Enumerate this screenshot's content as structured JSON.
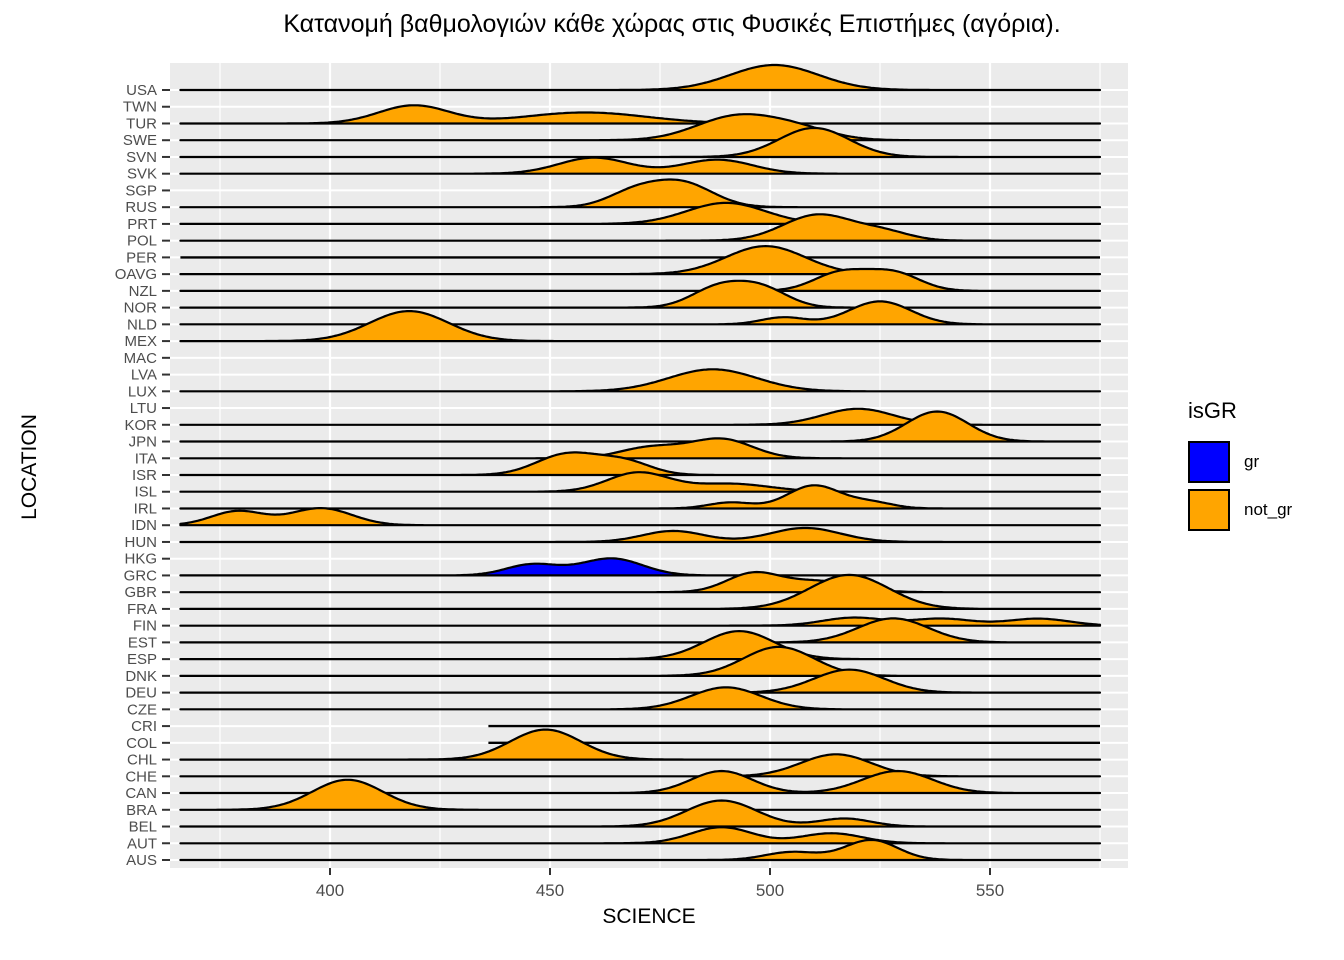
{
  "chart_data": {
    "type": "ridgeline",
    "title": "Κατανομή βαθμολογιών κάθε χώρας στις Φυσικές Επιστήμες (αγόρια).",
    "xlabel": "SCIENCE",
    "ylabel": "LOCATION",
    "x_ticks": [
      400,
      450,
      500,
      550
    ],
    "x_minor_ticks": [
      375,
      425,
      475,
      525,
      575
    ],
    "xlim": [
      363,
      582
    ],
    "legend": {
      "title": "isGR",
      "entries": [
        {
          "label": "gr",
          "color": "#0000FF"
        },
        {
          "label": "not_gr",
          "color": "#FFA500"
        }
      ],
      "position": "right"
    },
    "colors": {
      "panel_bg": "#EBEBEB",
      "grid": "#FFFFFF",
      "axis_text": "#4D4D4D",
      "outline": "#000000",
      "gr": "#0000FF",
      "not_gr": "#FFA500"
    },
    "note": "Each row shows a density of science scores; modes are [peak_score, sd_in_score_units, peak_height_px]. status: normal = curve, flat = baseline only, absent = no data line.",
    "countries": [
      {
        "code": "USA",
        "group": "not_gr",
        "status": "normal",
        "range": [
          366,
          575
        ],
        "modes": [
          [
            501,
            10,
            25
          ]
        ]
      },
      {
        "code": "TWN",
        "group": "not_gr",
        "status": "absent",
        "range": [
          366,
          575
        ],
        "modes": []
      },
      {
        "code": "TUR",
        "group": "not_gr",
        "status": "normal",
        "range": [
          366,
          575
        ],
        "modes": [
          [
            419,
            8,
            18
          ],
          [
            458,
            14,
            11
          ]
        ]
      },
      {
        "code": "SWE",
        "group": "not_gr",
        "status": "normal",
        "range": [
          366,
          575
        ],
        "modes": [
          [
            492,
            9,
            23
          ],
          [
            506,
            8,
            11
          ]
        ]
      },
      {
        "code": "SVN",
        "group": "not_gr",
        "status": "normal",
        "range": [
          366,
          575
        ],
        "modes": [
          [
            510,
            8,
            29
          ]
        ]
      },
      {
        "code": "SVK",
        "group": "not_gr",
        "status": "normal",
        "range": [
          366,
          575
        ],
        "modes": [
          [
            460,
            8,
            16
          ],
          [
            488,
            8,
            14
          ]
        ]
      },
      {
        "code": "SGP",
        "group": "not_gr",
        "status": "absent",
        "range": [
          366,
          575
        ],
        "modes": []
      },
      {
        "code": "RUS",
        "group": "not_gr",
        "status": "normal",
        "range": [
          366,
          575
        ],
        "modes": [
          [
            469,
            6,
            14
          ],
          [
            480,
            7,
            24
          ]
        ]
      },
      {
        "code": "PRT",
        "group": "not_gr",
        "status": "normal",
        "range": [
          366,
          575
        ],
        "modes": [
          [
            490,
            9,
            21
          ]
        ]
      },
      {
        "code": "POL",
        "group": "not_gr",
        "status": "normal",
        "range": [
          366,
          575
        ],
        "modes": [
          [
            511,
            8,
            26
          ],
          [
            526,
            6,
            8
          ]
        ]
      },
      {
        "code": "PER",
        "group": "not_gr",
        "status": "flat",
        "range": [
          366,
          575
        ],
        "modes": []
      },
      {
        "code": "OAVG",
        "group": "not_gr",
        "status": "normal",
        "range": [
          366,
          575
        ],
        "modes": [
          [
            499,
            9,
            28
          ]
        ]
      },
      {
        "code": "NZL",
        "group": "not_gr",
        "status": "normal",
        "range": [
          366,
          575
        ],
        "modes": [
          [
            516,
            6,
            18
          ],
          [
            528,
            6,
            18
          ]
        ]
      },
      {
        "code": "NOR",
        "group": "not_gr",
        "status": "normal",
        "range": [
          366,
          575
        ],
        "modes": [
          [
            488,
            6,
            19
          ],
          [
            498,
            6,
            19
          ]
        ]
      },
      {
        "code": "NLD",
        "group": "not_gr",
        "status": "normal",
        "range": [
          366,
          575
        ],
        "modes": [
          [
            503,
            5,
            7
          ],
          [
            525,
            7,
            23
          ]
        ]
      },
      {
        "code": "MEX",
        "group": "not_gr",
        "status": "normal",
        "range": [
          366,
          575
        ],
        "modes": [
          [
            418,
            9,
            30
          ]
        ]
      },
      {
        "code": "MAC",
        "group": "not_gr",
        "status": "absent",
        "range": [
          366,
          575
        ],
        "modes": []
      },
      {
        "code": "LVA",
        "group": "not_gr",
        "status": "absent",
        "range": [
          366,
          575
        ],
        "modes": []
      },
      {
        "code": "LUX",
        "group": "not_gr",
        "status": "normal",
        "range": [
          366,
          575
        ],
        "modes": [
          [
            487,
            10,
            22
          ]
        ]
      },
      {
        "code": "LTU",
        "group": "not_gr",
        "status": "absent",
        "range": [
          366,
          575
        ],
        "modes": []
      },
      {
        "code": "KOR",
        "group": "not_gr",
        "status": "normal",
        "range": [
          366,
          575
        ],
        "modes": [
          [
            520,
            8,
            16
          ]
        ]
      },
      {
        "code": "JPN",
        "group": "not_gr",
        "status": "normal",
        "range": [
          366,
          575
        ],
        "modes": [
          [
            538,
            7,
            30
          ]
        ]
      },
      {
        "code": "ITA",
        "group": "not_gr",
        "status": "normal",
        "range": [
          366,
          575
        ],
        "modes": [
          [
            473,
            7,
            11
          ],
          [
            489,
            7,
            19
          ]
        ]
      },
      {
        "code": "ISR",
        "group": "not_gr",
        "status": "normal",
        "range": [
          366,
          575
        ],
        "modes": [
          [
            454,
            7,
            21
          ],
          [
            467,
            6,
            13
          ]
        ]
      },
      {
        "code": "ISL",
        "group": "not_gr",
        "status": "normal",
        "range": [
          366,
          575
        ],
        "modes": [
          [
            470,
            7,
            19
          ],
          [
            491,
            9,
            8
          ]
        ]
      },
      {
        "code": "IRL",
        "group": "not_gr",
        "status": "normal",
        "range": [
          366,
          575
        ],
        "modes": [
          [
            491,
            5,
            6
          ],
          [
            510,
            6,
            23
          ],
          [
            523,
            5,
            6
          ]
        ]
      },
      {
        "code": "IDN",
        "group": "not_gr",
        "status": "normal",
        "range": [
          366,
          575
        ],
        "modes": [
          [
            379,
            6,
            14
          ],
          [
            398,
            7,
            17
          ]
        ]
      },
      {
        "code": "HUN",
        "group": "not_gr",
        "status": "normal",
        "range": [
          366,
          575
        ],
        "modes": [
          [
            478,
            7,
            11
          ],
          [
            508,
            8,
            14
          ]
        ]
      },
      {
        "code": "HKG",
        "group": "not_gr",
        "status": "absent",
        "range": [
          366,
          575
        ],
        "modes": []
      },
      {
        "code": "GRC",
        "group": "gr",
        "status": "normal",
        "range": [
          366,
          575
        ],
        "modes": [
          [
            446,
            6,
            11
          ],
          [
            464,
            7,
            17
          ]
        ]
      },
      {
        "code": "GBR",
        "group": "not_gr",
        "status": "normal",
        "range": [
          366,
          575
        ],
        "modes": [
          [
            496,
            6,
            18
          ],
          [
            511,
            8,
            11
          ]
        ]
      },
      {
        "code": "FRA",
        "group": "not_gr",
        "status": "normal",
        "range": [
          366,
          575
        ],
        "modes": [
          [
            518,
            9,
            34
          ]
        ]
      },
      {
        "code": "FIN",
        "group": "not_gr",
        "status": "normal",
        "range": [
          366,
          575
        ],
        "modes": [
          [
            519,
            7,
            8
          ],
          [
            539,
            7,
            7
          ],
          [
            561,
            7,
            7
          ]
        ]
      },
      {
        "code": "EST",
        "group": "not_gr",
        "status": "normal",
        "range": [
          366,
          575
        ],
        "modes": [
          [
            528,
            8,
            24
          ]
        ]
      },
      {
        "code": "ESP",
        "group": "not_gr",
        "status": "normal",
        "range": [
          366,
          575
        ],
        "modes": [
          [
            493,
            8,
            28
          ]
        ]
      },
      {
        "code": "DNK",
        "group": "not_gr",
        "status": "normal",
        "range": [
          366,
          575
        ],
        "modes": [
          [
            502,
            8,
            29
          ]
        ]
      },
      {
        "code": "DEU",
        "group": "not_gr",
        "status": "normal",
        "range": [
          366,
          575
        ],
        "modes": [
          [
            518,
            8,
            23
          ]
        ]
      },
      {
        "code": "CZE",
        "group": "not_gr",
        "status": "normal",
        "range": [
          366,
          575
        ],
        "modes": [
          [
            490,
            8,
            22
          ]
        ]
      },
      {
        "code": "CRI",
        "group": "not_gr",
        "status": "flat",
        "range": [
          436,
          575
        ],
        "modes": []
      },
      {
        "code": "COL",
        "group": "not_gr",
        "status": "flat",
        "range": [
          436,
          575
        ],
        "modes": []
      },
      {
        "code": "CHL",
        "group": "not_gr",
        "status": "normal",
        "range": [
          366,
          575
        ],
        "modes": [
          [
            449,
            8,
            30
          ]
        ]
      },
      {
        "code": "CHE",
        "group": "not_gr",
        "status": "normal",
        "range": [
          366,
          575
        ],
        "modes": [
          [
            515,
            8,
            22
          ]
        ]
      },
      {
        "code": "CAN",
        "group": "not_gr",
        "status": "normal",
        "range": [
          366,
          575
        ],
        "modes": [
          [
            489,
            7,
            22
          ],
          [
            529,
            8,
            22
          ]
        ]
      },
      {
        "code": "BRA",
        "group": "not_gr",
        "status": "normal",
        "range": [
          366,
          575
        ],
        "modes": [
          [
            404,
            8,
            30
          ]
        ]
      },
      {
        "code": "BEL",
        "group": "not_gr",
        "status": "normal",
        "range": [
          366,
          575
        ],
        "modes": [
          [
            489,
            8,
            26
          ],
          [
            517,
            6,
            8
          ]
        ]
      },
      {
        "code": "AUT",
        "group": "not_gr",
        "status": "normal",
        "range": [
          366,
          575
        ],
        "modes": [
          [
            489,
            7,
            16
          ],
          [
            514,
            7,
            10
          ]
        ]
      },
      {
        "code": "AUS",
        "group": "not_gr",
        "status": "normal",
        "range": [
          366,
          575
        ],
        "modes": [
          [
            505,
            6,
            8
          ],
          [
            523,
            6,
            20
          ]
        ]
      }
    ]
  }
}
